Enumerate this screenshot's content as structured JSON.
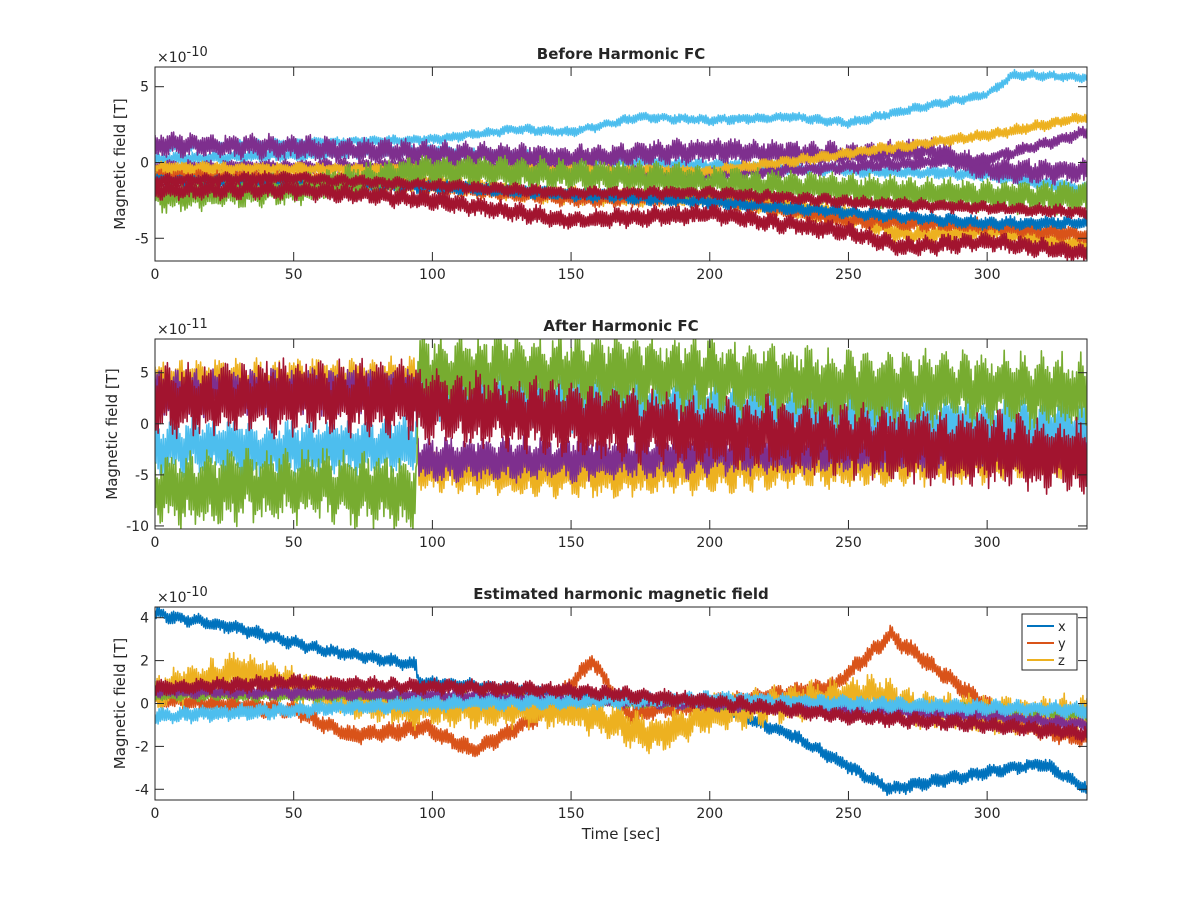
{
  "figure": {
    "palette": {
      "blue": "#0072BD",
      "orange": "#D95319",
      "yellow": "#EDB120",
      "purple": "#7E2F8E",
      "green": "#77AC30",
      "lightblue": "#4DBEEE",
      "darkred": "#A2142F"
    }
  },
  "chart_data": [
    {
      "type": "line",
      "title": "Before Harmonic FC",
      "xlabel": "",
      "ylabel": "Magnetic field [T]",
      "exponent_label": "×10",
      "exponent_power": "-10",
      "xlim": [
        0,
        336
      ],
      "ylim": [
        -6.5,
        6.3
      ],
      "scale": 1e-10,
      "xticks": [
        0,
        50,
        100,
        150,
        200,
        250,
        300
      ],
      "xtick_labels": [
        "0",
        "50",
        "100",
        "150",
        "200",
        "250",
        "300"
      ],
      "yticks": [
        -5,
        0,
        5
      ],
      "ytick_labels": [
        "-5",
        "0",
        "5"
      ],
      "grid": false,
      "series": [
        {
          "color": "#4DBEEE",
          "x": [
            0,
            50,
            100,
            130,
            150,
            175,
            200,
            230,
            250,
            280,
            300,
            310,
            336
          ],
          "y": [
            1.0,
            1.3,
            1.5,
            2.2,
            2.0,
            3.0,
            2.8,
            3.0,
            2.6,
            3.8,
            4.5,
            5.8,
            5.6
          ],
          "band": 0.6
        },
        {
          "color": "#4DBEEE",
          "x": [
            0,
            50,
            100,
            150,
            200,
            250,
            300,
            336
          ],
          "y": [
            0.2,
            0.5,
            0.8,
            0.2,
            -0.2,
            -0.5,
            -0.8,
            -1.8
          ],
          "band": 0.8
        },
        {
          "color": "#7E2F8E",
          "x": [
            0,
            50,
            100,
            150,
            200,
            250,
            280,
            300,
            336
          ],
          "y": [
            1.2,
            1.0,
            0.6,
            0.3,
            0.8,
            0.5,
            0.8,
            -0.5,
            -0.6
          ],
          "band": 1.5
        },
        {
          "color": "#7E2F8E",
          "x": [
            0,
            100,
            200,
            300,
            336
          ],
          "y": [
            -0.3,
            -0.2,
            -0.8,
            0.2,
            2.0
          ],
          "band": 0.8
        },
        {
          "color": "#EDB120",
          "x": [
            0,
            50,
            100,
            150,
            200,
            250,
            270,
            300,
            336
          ],
          "y": [
            -0.8,
            -1.0,
            -1.3,
            -2.2,
            -2.3,
            -3.5,
            -4.8,
            -4.5,
            -5.5
          ],
          "band": 1.2
        },
        {
          "color": "#EDB120",
          "x": [
            0,
            100,
            200,
            300,
            336
          ],
          "y": [
            -0.3,
            -0.5,
            -0.6,
            1.8,
            3.0
          ],
          "band": 0.7
        },
        {
          "color": "#D95319",
          "x": [
            0,
            50,
            100,
            150,
            200,
            250,
            300,
            336
          ],
          "y": [
            -1.0,
            -1.2,
            -1.6,
            -2.4,
            -2.4,
            -3.8,
            -4.2,
            -4.8
          ],
          "band": 1.0
        },
        {
          "color": "#0072BD",
          "x": [
            0,
            100,
            200,
            300,
            336
          ],
          "y": [
            -1.2,
            -1.6,
            -2.6,
            -4.0,
            -4.0
          ],
          "band": 0.8
        },
        {
          "color": "#77AC30",
          "x": [
            0,
            50,
            100,
            150,
            200,
            250,
            300,
            336
          ],
          "y": [
            -2.2,
            -1.8,
            -0.5,
            -0.8,
            -1.3,
            -1.8,
            -2.2,
            -2.3
          ],
          "band": 2.0
        },
        {
          "color": "#A2142F",
          "x": [
            0,
            50,
            100,
            150,
            200,
            250,
            270,
            300,
            336
          ],
          "y": [
            -1.8,
            -1.8,
            -2.5,
            -3.8,
            -3.4,
            -4.6,
            -5.6,
            -5.2,
            -6.0
          ],
          "band": 1.2
        },
        {
          "color": "#A2142F",
          "x": [
            0,
            50,
            100,
            150,
            200,
            250,
            300,
            336
          ],
          "y": [
            -1.2,
            -1.0,
            -1.5,
            -2.0,
            -2.0,
            -2.6,
            -3.0,
            -3.3
          ],
          "band": 0.8
        }
      ]
    },
    {
      "type": "line",
      "title": "After Harmonic FC",
      "xlabel": "",
      "ylabel": "Magnetic field [T]",
      "exponent_label": "×10",
      "exponent_power": "-11",
      "xlim": [
        0,
        336
      ],
      "ylim": [
        -10.3,
        8.3
      ],
      "scale": 1e-11,
      "xticks": [
        0,
        50,
        100,
        150,
        200,
        250,
        300
      ],
      "xtick_labels": [
        "0",
        "50",
        "100",
        "150",
        "200",
        "250",
        "300"
      ],
      "yticks": [
        -10,
        -5,
        0,
        5
      ],
      "ytick_labels": [
        "-10",
        "-5",
        "0",
        "5"
      ],
      "grid": false,
      "series": [
        {
          "color": "#EDB120",
          "x": [
            0,
            94,
            95,
            150,
            200,
            250,
            300,
            336
          ],
          "y": [
            4.0,
            4.2,
            -4.5,
            -5.0,
            -4.5,
            -4.0,
            -3.5,
            -3.0
          ],
          "band": 4.0
        },
        {
          "color": "#7E2F8E",
          "x": [
            0,
            94,
            95,
            150,
            200,
            250,
            300,
            336
          ],
          "y": [
            3.0,
            3.2,
            -3.5,
            -3.5,
            -3.0,
            -2.5,
            -2.0,
            -2.0
          ],
          "band": 4.0
        },
        {
          "color": "#4DBEEE",
          "x": [
            0,
            50,
            94,
            95,
            150,
            200,
            250,
            300,
            336
          ],
          "y": [
            -2.2,
            -2.5,
            -2.0,
            2.5,
            2.0,
            1.5,
            0.5,
            -0.2,
            -0.5
          ],
          "band": 5.0
        },
        {
          "color": "#77AC30",
          "x": [
            0,
            50,
            94,
            95,
            150,
            200,
            250,
            300,
            336
          ],
          "y": [
            -6.5,
            -6.0,
            -6.8,
            5.0,
            5.0,
            4.8,
            3.5,
            3.5,
            3.0
          ],
          "band": 6.5
        },
        {
          "color": "#A2142F",
          "x": [
            0,
            50,
            94,
            95,
            150,
            200,
            250,
            300,
            336
          ],
          "y": [
            2.3,
            2.6,
            2.5,
            1.8,
            0.5,
            -0.8,
            -1.5,
            -2.5,
            -3.5
          ],
          "band": 6.5
        }
      ]
    },
    {
      "type": "line",
      "title": "Estimated harmonic magnetic field",
      "xlabel": "Time [sec]",
      "ylabel": "Magnetic field [T]",
      "exponent_label": "×10",
      "exponent_power": "-10",
      "xlim": [
        0,
        336
      ],
      "ylim": [
        -4.5,
        4.5
      ],
      "scale": 1e-10,
      "xticks": [
        0,
        50,
        100,
        150,
        200,
        250,
        300
      ],
      "xtick_labels": [
        "0",
        "50",
        "100",
        "150",
        "200",
        "250",
        "300"
      ],
      "yticks": [
        -4,
        -2,
        0,
        2,
        4
      ],
      "ytick_labels": [
        "-4",
        "-2",
        "0",
        "2",
        "4"
      ],
      "grid": false,
      "legend": {
        "placement": "top-right",
        "entries": [
          "x",
          "y",
          "z"
        ],
        "colors": [
          "#0072BD",
          "#D95319",
          "#EDB120"
        ]
      },
      "series": [
        {
          "name": "x",
          "color": "#0072BD",
          "x": [
            0,
            30,
            60,
            94,
            95,
            150,
            200,
            230,
            265,
            300,
            320,
            336
          ],
          "y": [
            4.2,
            3.5,
            2.5,
            1.8,
            1.0,
            0.5,
            0.0,
            -1.5,
            -4.0,
            -3.2,
            -2.8,
            -4.0
          ],
          "band": 0.6
        },
        {
          "name": "y",
          "color": "#D95319",
          "x": [
            0,
            50,
            70,
            94,
            95,
            115,
            140,
            158,
            170,
            200,
            230,
            245,
            265,
            290,
            310,
            336
          ],
          "y": [
            0.2,
            -0.3,
            -1.5,
            -1.2,
            -1.0,
            -2.2,
            -0.5,
            2.0,
            -0.5,
            0.0,
            0.5,
            0.8,
            3.2,
            0.8,
            -1.0,
            -1.7
          ],
          "band": 0.8
        },
        {
          "name": "z",
          "color": "#EDB120",
          "x": [
            0,
            30,
            60,
            94,
            95,
            150,
            180,
            200,
            230,
            260,
            275,
            300,
            336
          ],
          "y": [
            0.5,
            1.5,
            0.5,
            -0.3,
            -0.2,
            -0.3,
            -1.5,
            -0.5,
            0.0,
            0.5,
            -0.3,
            -0.5,
            -0.5
          ],
          "band": 1.6
        },
        {
          "color": "#77AC30",
          "x": [
            0,
            100,
            200,
            300,
            336
          ],
          "y": [
            0.4,
            0.3,
            0.0,
            -0.3,
            -0.5
          ],
          "band": 0.5
        },
        {
          "color": "#7E2F8E",
          "x": [
            0,
            100,
            200,
            300,
            336
          ],
          "y": [
            0.6,
            0.4,
            0.0,
            -0.6,
            -1.0
          ],
          "band": 0.6
        },
        {
          "color": "#4DBEEE",
          "x": [
            0,
            100,
            200,
            300,
            336
          ],
          "y": [
            -0.6,
            0.0,
            0.2,
            -0.2,
            -0.3
          ],
          "band": 0.7
        },
        {
          "color": "#A2142F",
          "x": [
            0,
            50,
            94,
            150,
            200,
            250,
            300,
            336
          ],
          "y": [
            0.7,
            1.0,
            0.8,
            0.6,
            0.1,
            -0.6,
            -1.0,
            -1.4
          ],
          "band": 0.7
        }
      ]
    }
  ]
}
